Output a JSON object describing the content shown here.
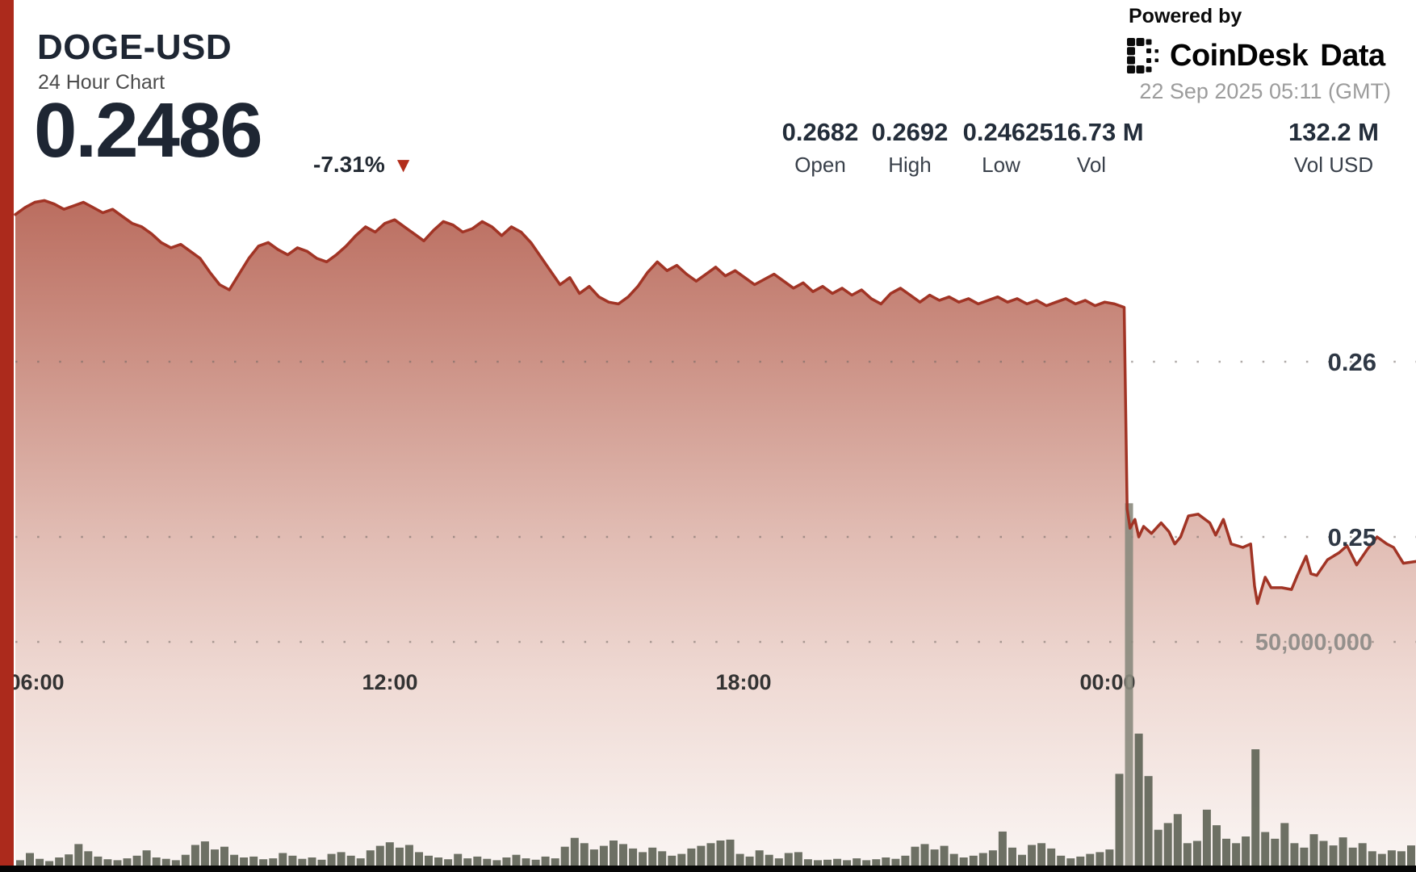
{
  "header": {
    "symbol": "DOGE-USD",
    "subtitle": "24 Hour Chart",
    "price": "0.2486",
    "change": "-7.31%",
    "change_direction": "down"
  },
  "branding": {
    "powered_by": "Powered by",
    "brand_name": "CoinDesk",
    "brand_suffix": "Data",
    "timestamp": "22 Sep 2025 05:11 (GMT)"
  },
  "stats": [
    {
      "value": "0.2682",
      "label": "Open"
    },
    {
      "value": "0.2692",
      "label": "High"
    },
    {
      "value": "0.2462",
      "label": "Low"
    },
    {
      "value": "516.73 M",
      "label": "Vol"
    },
    {
      "value": "132.2 M",
      "label": "Vol USD"
    }
  ],
  "colors": {
    "sidebar_red": "#AC2A1C",
    "line_red": "#A13425",
    "triangle_red": "#B22D1B",
    "fill_gradient": [
      "#B96A5C",
      "#CD9387",
      "#E0BAB1",
      "#EFDAD4",
      "#FAF5F3"
    ],
    "volume_bar": "#5D6254",
    "volume_bar_highlight": "#8A8A7D",
    "grid_dot": "#6F6662",
    "x_label": "#333333",
    "y_price_label": "#2F3845",
    "y_volume_label": "#94908C",
    "bottom_strip": "#060606",
    "title_dark": "#1E2633"
  },
  "chart_data": {
    "type": "area",
    "title": "DOGE-USD 24 Hour Chart",
    "legend": "none",
    "grid": "dotted-horizontal",
    "x_axis": {
      "ticks": [
        {
          "label": "06:00",
          "f": 0.015
        },
        {
          "label": "12:00",
          "f": 0.2674
        },
        {
          "label": "18:00",
          "f": 0.5199
        },
        {
          "label": "00:00",
          "f": 0.7799
        }
      ]
    },
    "y_axis_price": {
      "range": [
        0.244,
        0.2705
      ],
      "gridlines": [
        {
          "label": "0.26",
          "price": 0.26
        },
        {
          "label": "0.25",
          "price": 0.25
        }
      ]
    },
    "y_axis_volume": {
      "gridline_label": "50,000,000",
      "gridline_value": 50000000
    },
    "summary": {
      "open": 0.2682,
      "high": 0.2692,
      "low": 0.2462,
      "close": 0.2486,
      "volume": "516.73 M",
      "volume_usd": "132.2 M",
      "change_pct": -7.31
    },
    "price_series_t_minutes_price": [
      [
        0,
        0.2684
      ],
      [
        10,
        0.2688
      ],
      [
        20,
        0.2691
      ],
      [
        30,
        0.2692
      ],
      [
        40,
        0.269
      ],
      [
        50,
        0.2687
      ],
      [
        60,
        0.2689
      ],
      [
        70,
        0.2691
      ],
      [
        80,
        0.2688
      ],
      [
        90,
        0.2685
      ],
      [
        100,
        0.2687
      ],
      [
        110,
        0.2683
      ],
      [
        120,
        0.2679
      ],
      [
        130,
        0.2677
      ],
      [
        140,
        0.2673
      ],
      [
        150,
        0.2668
      ],
      [
        160,
        0.2665
      ],
      [
        170,
        0.2667
      ],
      [
        180,
        0.2663
      ],
      [
        190,
        0.2659
      ],
      [
        200,
        0.2651
      ],
      [
        210,
        0.2644
      ],
      [
        220,
        0.2641
      ],
      [
        230,
        0.265
      ],
      [
        240,
        0.2659
      ],
      [
        250,
        0.2666
      ],
      [
        260,
        0.2668
      ],
      [
        270,
        0.2664
      ],
      [
        280,
        0.2661
      ],
      [
        290,
        0.2665
      ],
      [
        300,
        0.2663
      ],
      [
        310,
        0.2659
      ],
      [
        320,
        0.2657
      ],
      [
        330,
        0.2661
      ],
      [
        340,
        0.2666
      ],
      [
        350,
        0.2672
      ],
      [
        360,
        0.2677
      ],
      [
        370,
        0.2674
      ],
      [
        380,
        0.2679
      ],
      [
        390,
        0.2681
      ],
      [
        400,
        0.2677
      ],
      [
        410,
        0.2673
      ],
      [
        420,
        0.2669
      ],
      [
        430,
        0.2675
      ],
      [
        440,
        0.268
      ],
      [
        450,
        0.2678
      ],
      [
        460,
        0.2674
      ],
      [
        470,
        0.2676
      ],
      [
        480,
        0.268
      ],
      [
        490,
        0.2677
      ],
      [
        500,
        0.2672
      ],
      [
        510,
        0.2677
      ],
      [
        520,
        0.2674
      ],
      [
        530,
        0.2668
      ],
      [
        540,
        0.266
      ],
      [
        550,
        0.2652
      ],
      [
        560,
        0.2644
      ],
      [
        570,
        0.2648
      ],
      [
        580,
        0.2639
      ],
      [
        590,
        0.2643
      ],
      [
        600,
        0.2637
      ],
      [
        610,
        0.2634
      ],
      [
        620,
        0.2633
      ],
      [
        630,
        0.2637
      ],
      [
        640,
        0.2643
      ],
      [
        650,
        0.2651
      ],
      [
        660,
        0.2657
      ],
      [
        670,
        0.2652
      ],
      [
        680,
        0.2655
      ],
      [
        690,
        0.265
      ],
      [
        700,
        0.2646
      ],
      [
        710,
        0.265
      ],
      [
        720,
        0.2654
      ],
      [
        730,
        0.2649
      ],
      [
        740,
        0.2652
      ],
      [
        750,
        0.2648
      ],
      [
        760,
        0.2644
      ],
      [
        770,
        0.2647
      ],
      [
        780,
        0.265
      ],
      [
        790,
        0.2646
      ],
      [
        800,
        0.2642
      ],
      [
        810,
        0.2645
      ],
      [
        820,
        0.264
      ],
      [
        830,
        0.2643
      ],
      [
        840,
        0.2639
      ],
      [
        850,
        0.2642
      ],
      [
        860,
        0.2638
      ],
      [
        870,
        0.2641
      ],
      [
        880,
        0.2636
      ],
      [
        890,
        0.2633
      ],
      [
        900,
        0.2639
      ],
      [
        910,
        0.2642
      ],
      [
        920,
        0.2638
      ],
      [
        930,
        0.2634
      ],
      [
        940,
        0.2638
      ],
      [
        950,
        0.2635
      ],
      [
        960,
        0.2637
      ],
      [
        970,
        0.2634
      ],
      [
        980,
        0.2636
      ],
      [
        990,
        0.2633
      ],
      [
        1000,
        0.2635
      ],
      [
        1010,
        0.2637
      ],
      [
        1020,
        0.2634
      ],
      [
        1030,
        0.2636
      ],
      [
        1040,
        0.2633
      ],
      [
        1050,
        0.2635
      ],
      [
        1060,
        0.2632
      ],
      [
        1070,
        0.2634
      ],
      [
        1080,
        0.2636
      ],
      [
        1090,
        0.2633
      ],
      [
        1100,
        0.2635
      ],
      [
        1110,
        0.2632
      ],
      [
        1120,
        0.2634
      ],
      [
        1130,
        0.2633
      ],
      [
        1140,
        0.2631
      ],
      [
        1143,
        0.2516
      ],
      [
        1146,
        0.2505
      ],
      [
        1151,
        0.251
      ],
      [
        1155,
        0.25
      ],
      [
        1160,
        0.2506
      ],
      [
        1168,
        0.2502
      ],
      [
        1178,
        0.2508
      ],
      [
        1186,
        0.2503
      ],
      [
        1192,
        0.2496
      ],
      [
        1198,
        0.25
      ],
      [
        1206,
        0.2512
      ],
      [
        1216,
        0.2513
      ],
      [
        1228,
        0.2508
      ],
      [
        1234,
        0.2501
      ],
      [
        1242,
        0.251
      ],
      [
        1250,
        0.2496
      ],
      [
        1262,
        0.2494
      ],
      [
        1270,
        0.2496
      ],
      [
        1274,
        0.2472
      ],
      [
        1277,
        0.2462
      ],
      [
        1285,
        0.2477
      ],
      [
        1291,
        0.2471
      ],
      [
        1302,
        0.2471
      ],
      [
        1312,
        0.247
      ],
      [
        1318,
        0.2478
      ],
      [
        1327,
        0.2489
      ],
      [
        1332,
        0.2479
      ],
      [
        1338,
        0.2478
      ],
      [
        1349,
        0.2487
      ],
      [
        1361,
        0.2491
      ],
      [
        1369,
        0.2495
      ],
      [
        1379,
        0.2484
      ],
      [
        1390,
        0.2493
      ],
      [
        1400,
        0.25
      ],
      [
        1410,
        0.2496
      ],
      [
        1417,
        0.2494
      ],
      [
        1427,
        0.2485
      ],
      [
        1440,
        0.2486
      ]
    ],
    "volume_series_millions": [
      1.2,
      2.8,
      1.5,
      1.0,
      1.8,
      2.5,
      4.8,
      3.2,
      2.0,
      1.4,
      1.2,
      1.6,
      2.2,
      3.4,
      1.8,
      1.5,
      1.2,
      2.4,
      4.6,
      5.4,
      3.6,
      4.2,
      2.4,
      1.8,
      2.0,
      1.4,
      1.6,
      2.8,
      2.2,
      1.5,
      1.8,
      1.3,
      2.6,
      3.0,
      2.2,
      1.6,
      3.4,
      4.4,
      5.2,
      4.0,
      4.6,
      3.0,
      2.2,
      1.8,
      1.4,
      2.6,
      1.6,
      2.0,
      1.5,
      1.2,
      1.8,
      2.4,
      1.6,
      1.3,
      2.0,
      1.6,
      4.2,
      6.2,
      5.0,
      3.6,
      4.4,
      5.6,
      4.8,
      3.8,
      3.0,
      4.0,
      3.2,
      2.2,
      2.6,
      3.8,
      4.4,
      5.0,
      5.6,
      5.8,
      2.6,
      2.0,
      3.4,
      2.4,
      1.6,
      2.8,
      3.0,
      1.4,
      1.2,
      1.3,
      1.5,
      1.2,
      1.6,
      1.2,
      1.4,
      1.8,
      1.5,
      2.2,
      4.2,
      4.8,
      3.6,
      4.4,
      2.6,
      1.8,
      2.2,
      2.8,
      3.4,
      7.6,
      4.0,
      2.4,
      4.6,
      5.0,
      3.8,
      2.2,
      1.6,
      2.0,
      2.6,
      3.0,
      3.6,
      20.5,
      81,
      29.5,
      20,
      8,
      9.5,
      11.5,
      5,
      5.5,
      12.5,
      9,
      6,
      5,
      6.5,
      26,
      7.5,
      6,
      9.5,
      5,
      4,
      7,
      5.5,
      4.5,
      6.3,
      4,
      5,
      3.2,
      2.6,
      3.4,
      3.2,
      4.5
    ]
  }
}
